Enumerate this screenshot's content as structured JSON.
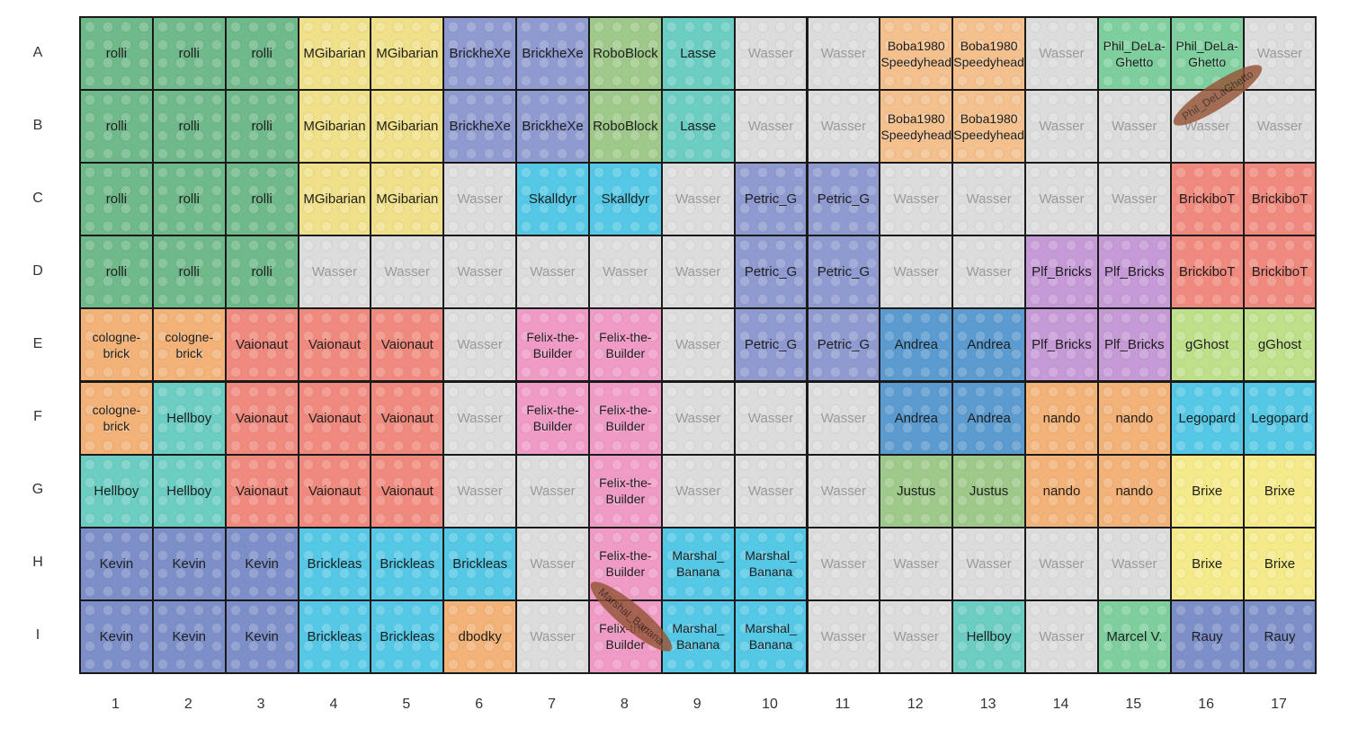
{
  "rows": [
    "A",
    "B",
    "C",
    "D",
    "E",
    "F",
    "G",
    "H",
    "I"
  ],
  "columns": [
    "1",
    "2",
    "3",
    "4",
    "5",
    "6",
    "7",
    "8",
    "9",
    "10",
    "11",
    "12",
    "13",
    "14",
    "15",
    "16",
    "17"
  ],
  "palette": {
    "green": "#6fb98a",
    "yellow": "#f0e08a",
    "periwinkle": "#8f9bd0",
    "sage": "#9fc98a",
    "teal": "#6ccdc3",
    "gray": "#dcdcdc",
    "peach": "#f3c08e",
    "mint": "#7fcf9e",
    "salmon": "#f08a7e",
    "cyan": "#55c8e6",
    "pink": "#ef9bc6",
    "blue": "#5b9bd0",
    "purple": "#c59ad6",
    "lime": "#bfe08a",
    "orange": "#f2b278",
    "lightyellow": "#f5ea8a",
    "navy": "#7d8fc8",
    "marker": "#965537"
  },
  "grid": [
    [
      [
        "rolli",
        "green"
      ],
      [
        "rolli",
        "green"
      ],
      [
        "rolli",
        "green"
      ],
      [
        "MGibarian",
        "yellow"
      ],
      [
        "MGibarian",
        "yellow"
      ],
      [
        "BrickheXe",
        "periwinkle"
      ],
      [
        "BrickheXe",
        "periwinkle"
      ],
      [
        "RoboBlock",
        "sage"
      ],
      [
        "Lasse",
        "teal"
      ],
      [
        "Wasser",
        "gray"
      ],
      [
        "Wasser",
        "gray"
      ],
      [
        "Boba1980\nSpeedyhead",
        "peach"
      ],
      [
        "Boba1980\nSpeedyhead",
        "peach"
      ],
      [
        "Wasser",
        "gray"
      ],
      [
        "Phil_DeLa-\nGhetto",
        "mint"
      ],
      [
        "Phil_DeLa-\nGhetto",
        "mint"
      ],
      [
        "Wasser",
        "gray"
      ]
    ],
    [
      [
        "rolli",
        "green"
      ],
      [
        "rolli",
        "green"
      ],
      [
        "rolli",
        "green"
      ],
      [
        "MGibarian",
        "yellow"
      ],
      [
        "MGibarian",
        "yellow"
      ],
      [
        "BrickheXe",
        "periwinkle"
      ],
      [
        "BrickheXe",
        "periwinkle"
      ],
      [
        "RoboBlock",
        "sage"
      ],
      [
        "Lasse",
        "teal"
      ],
      [
        "Wasser",
        "gray"
      ],
      [
        "Wasser",
        "gray"
      ],
      [
        "Boba1980\nSpeedyhead",
        "peach"
      ],
      [
        "Boba1980\nSpeedyhead",
        "peach"
      ],
      [
        "Wasser",
        "gray"
      ],
      [
        "Wasser",
        "gray"
      ],
      [
        "Wasser",
        "gray"
      ],
      [
        "Wasser",
        "gray"
      ]
    ],
    [
      [
        "rolli",
        "green"
      ],
      [
        "rolli",
        "green"
      ],
      [
        "rolli",
        "green"
      ],
      [
        "MGibarian",
        "yellow"
      ],
      [
        "MGibarian",
        "yellow"
      ],
      [
        "Wasser",
        "gray"
      ],
      [
        "Skalldyr",
        "cyan"
      ],
      [
        "Skalldyr",
        "cyan"
      ],
      [
        "Wasser",
        "gray"
      ],
      [
        "Petric_G",
        "periwinkle"
      ],
      [
        "Petric_G",
        "periwinkle"
      ],
      [
        "Wasser",
        "gray"
      ],
      [
        "Wasser",
        "gray"
      ],
      [
        "Wasser",
        "gray"
      ],
      [
        "Wasser",
        "gray"
      ],
      [
        "BrickiboT",
        "salmon"
      ],
      [
        "BrickiboT",
        "salmon"
      ]
    ],
    [
      [
        "rolli",
        "green"
      ],
      [
        "rolli",
        "green"
      ],
      [
        "rolli",
        "green"
      ],
      [
        "Wasser",
        "gray"
      ],
      [
        "Wasser",
        "gray"
      ],
      [
        "Wasser",
        "gray"
      ],
      [
        "Wasser",
        "gray"
      ],
      [
        "Wasser",
        "gray"
      ],
      [
        "Wasser",
        "gray"
      ],
      [
        "Petric_G",
        "periwinkle"
      ],
      [
        "Petric_G",
        "periwinkle"
      ],
      [
        "Wasser",
        "gray"
      ],
      [
        "Wasser",
        "gray"
      ],
      [
        "Plf_Bricks",
        "purple"
      ],
      [
        "Plf_Bricks",
        "purple"
      ],
      [
        "BrickiboT",
        "salmon"
      ],
      [
        "BrickiboT",
        "salmon"
      ]
    ],
    [
      [
        "cologne-\nbrick",
        "orange"
      ],
      [
        "cologne-\nbrick",
        "orange"
      ],
      [
        "Vaionaut",
        "salmon"
      ],
      [
        "Vaionaut",
        "salmon"
      ],
      [
        "Vaionaut",
        "salmon"
      ],
      [
        "Wasser",
        "gray"
      ],
      [
        "Felix-the-\nBuilder",
        "pink"
      ],
      [
        "Felix-the-\nBuilder",
        "pink"
      ],
      [
        "Wasser",
        "gray"
      ],
      [
        "Petric_G",
        "periwinkle"
      ],
      [
        "Petric_G",
        "periwinkle"
      ],
      [
        "Andrea",
        "blue"
      ],
      [
        "Andrea",
        "blue"
      ],
      [
        "Plf_Bricks",
        "purple"
      ],
      [
        "Plf_Bricks",
        "purple"
      ],
      [
        "gGhost",
        "lime"
      ],
      [
        "gGhost",
        "lime"
      ]
    ],
    [
      [
        "cologne-\nbrick",
        "orange"
      ],
      [
        "Hellboy",
        "teal"
      ],
      [
        "Vaionaut",
        "salmon"
      ],
      [
        "Vaionaut",
        "salmon"
      ],
      [
        "Vaionaut",
        "salmon"
      ],
      [
        "Wasser",
        "gray"
      ],
      [
        "Felix-the-\nBuilder",
        "pink"
      ],
      [
        "Felix-the-\nBuilder",
        "pink"
      ],
      [
        "Wasser",
        "gray"
      ],
      [
        "Wasser",
        "gray"
      ],
      [
        "Wasser",
        "gray"
      ],
      [
        "Andrea",
        "blue"
      ],
      [
        "Andrea",
        "blue"
      ],
      [
        "nando",
        "orange"
      ],
      [
        "nando",
        "orange"
      ],
      [
        "Legopard",
        "cyan"
      ],
      [
        "Legopard",
        "cyan"
      ]
    ],
    [
      [
        "Hellboy",
        "teal"
      ],
      [
        "Hellboy",
        "teal"
      ],
      [
        "Vaionaut",
        "salmon"
      ],
      [
        "Vaionaut",
        "salmon"
      ],
      [
        "Vaionaut",
        "salmon"
      ],
      [
        "Wasser",
        "gray"
      ],
      [
        "Wasser",
        "gray"
      ],
      [
        "Felix-the-\nBuilder",
        "pink"
      ],
      [
        "Wasser",
        "gray"
      ],
      [
        "Wasser",
        "gray"
      ],
      [
        "Wasser",
        "gray"
      ],
      [
        "Justus",
        "sage"
      ],
      [
        "Justus",
        "sage"
      ],
      [
        "nando",
        "orange"
      ],
      [
        "nando",
        "orange"
      ],
      [
        "Brixe",
        "lightyellow"
      ],
      [
        "Brixe",
        "lightyellow"
      ]
    ],
    [
      [
        "Kevin",
        "navy"
      ],
      [
        "Kevin",
        "navy"
      ],
      [
        "Kevin",
        "navy"
      ],
      [
        "Brickleas",
        "cyan"
      ],
      [
        "Brickleas",
        "cyan"
      ],
      [
        "Brickleas",
        "cyan"
      ],
      [
        "Wasser",
        "gray"
      ],
      [
        "Felix-the-\nBuilder",
        "pink"
      ],
      [
        "Marshal_\nBanana",
        "cyan"
      ],
      [
        "Marshal_\nBanana",
        "cyan"
      ],
      [
        "Wasser",
        "gray"
      ],
      [
        "Wasser",
        "gray"
      ],
      [
        "Wasser",
        "gray"
      ],
      [
        "Wasser",
        "gray"
      ],
      [
        "Wasser",
        "gray"
      ],
      [
        "Brixe",
        "lightyellow"
      ],
      [
        "Brixe",
        "lightyellow"
      ]
    ],
    [
      [
        "Kevin",
        "navy"
      ],
      [
        "Kevin",
        "navy"
      ],
      [
        "Kevin",
        "navy"
      ],
      [
        "Brickleas",
        "cyan"
      ],
      [
        "Brickleas",
        "cyan"
      ],
      [
        "dbodky",
        "orange"
      ],
      [
        "Wasser",
        "gray"
      ],
      [
        "Felix-the-\nBuilder",
        "pink"
      ],
      [
        "Marshal_\nBanana",
        "cyan"
      ],
      [
        "Marshal_\nBanana",
        "cyan"
      ],
      [
        "Wasser",
        "gray"
      ],
      [
        "Wasser",
        "gray"
      ],
      [
        "Hellboy",
        "teal"
      ],
      [
        "Wasser",
        "gray"
      ],
      [
        "Marcel V.",
        "mint"
      ],
      [
        "Rauy",
        "navy"
      ],
      [
        "Rauy",
        "navy"
      ]
    ]
  ],
  "markers": [
    {
      "label": "Phil_DeLaGhetto"
    },
    {
      "label": "Marshal_Banana"
    }
  ]
}
